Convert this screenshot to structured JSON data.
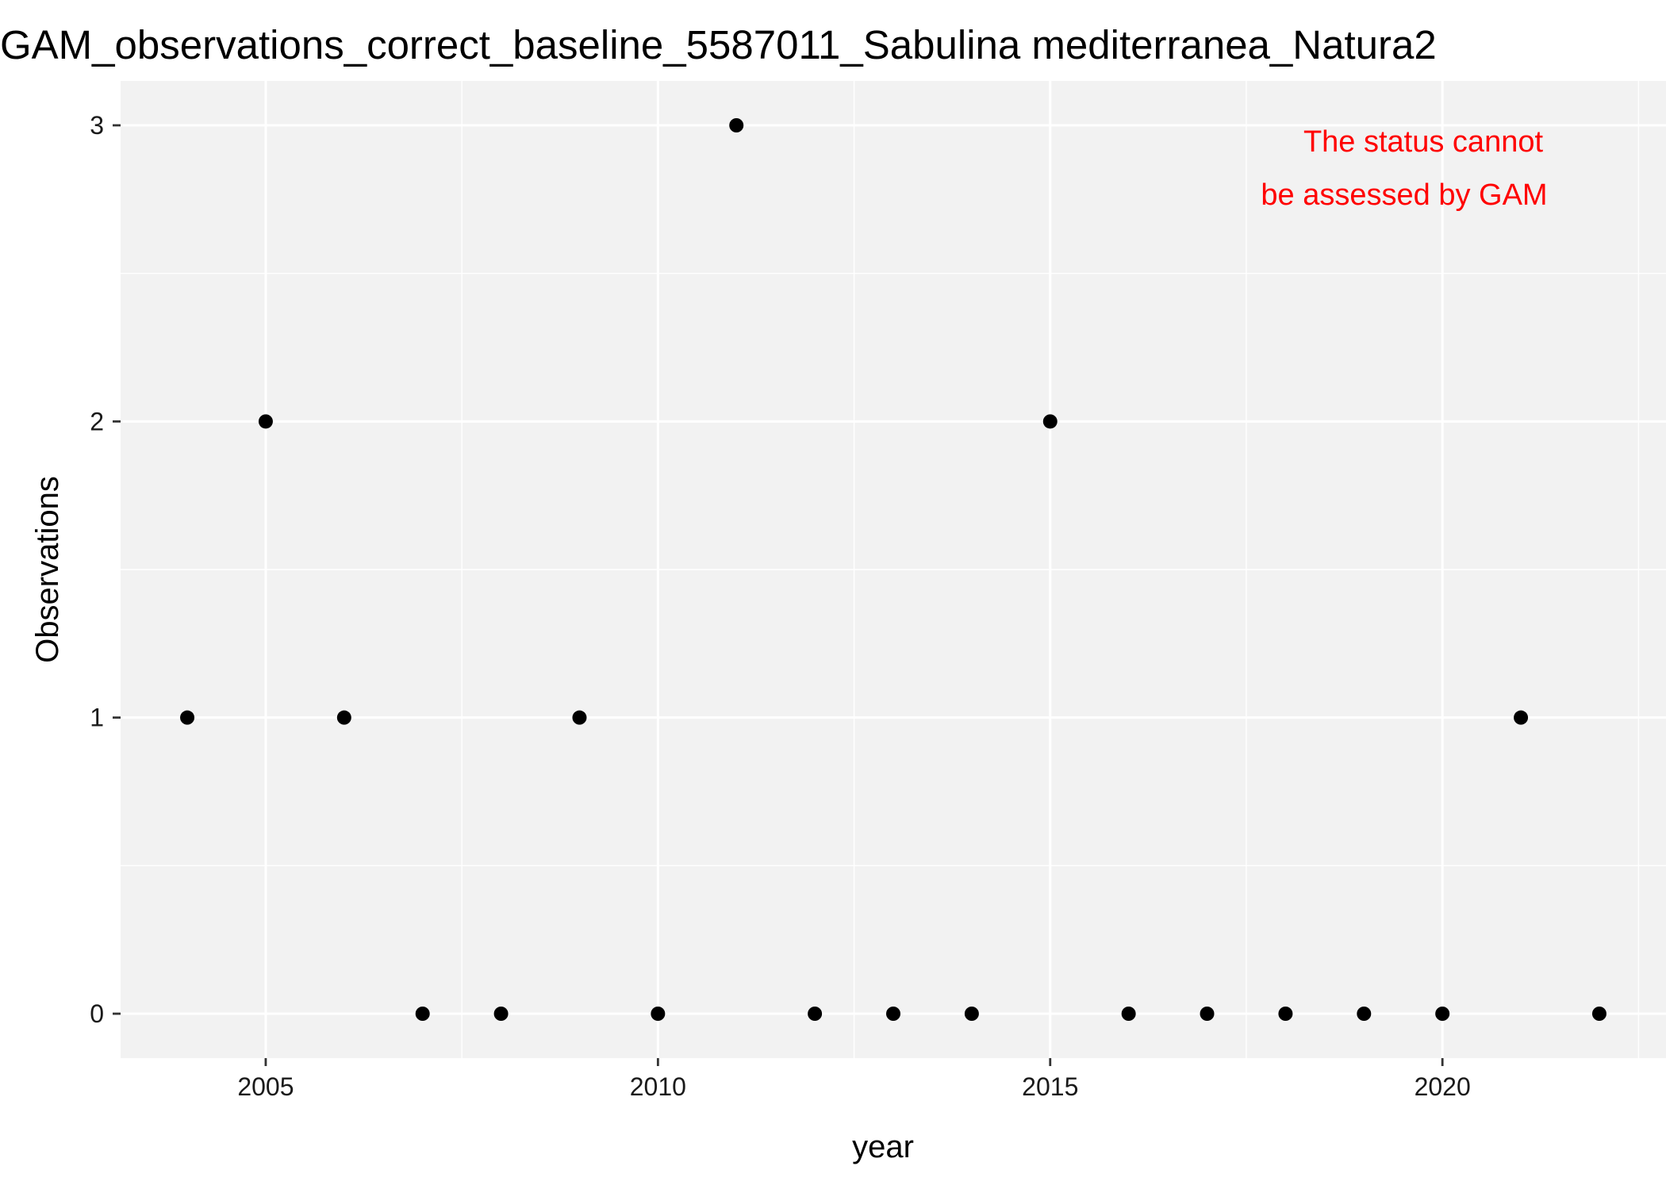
{
  "chart_data": {
    "type": "scatter",
    "title": "GAM_observations_correct_baseline_5587011_Sabulina mediterranea_Natura2",
    "xlabel": "year",
    "ylabel": "Observations",
    "xlim": [
      2003.15,
      2022.85
    ],
    "ylim": [
      -0.15,
      3.15
    ],
    "x_ticks": [
      2005,
      2010,
      2015,
      2020
    ],
    "x_tick_labels": [
      "2005",
      "2010",
      "2015",
      "2020"
    ],
    "y_ticks": [
      0,
      1,
      2,
      3
    ],
    "y_tick_labels": [
      "0",
      "1",
      "2",
      "3"
    ],
    "grid": true,
    "legend": "none",
    "point_color": "#000000",
    "panel_color": "#f2f2f2",
    "points": [
      {
        "x": 2004,
        "y": 1
      },
      {
        "x": 2005,
        "y": 2
      },
      {
        "x": 2006,
        "y": 1
      },
      {
        "x": 2007,
        "y": 0
      },
      {
        "x": 2008,
        "y": 0
      },
      {
        "x": 2009,
        "y": 1
      },
      {
        "x": 2010,
        "y": 0
      },
      {
        "x": 2011,
        "y": 3
      },
      {
        "x": 2012,
        "y": 0
      },
      {
        "x": 2013,
        "y": 0
      },
      {
        "x": 2014,
        "y": 0
      },
      {
        "x": 2015,
        "y": 2
      },
      {
        "x": 2016,
        "y": 0
      },
      {
        "x": 2017,
        "y": 0
      },
      {
        "x": 2018,
        "y": 0
      },
      {
        "x": 2019,
        "y": 0
      },
      {
        "x": 2020,
        "y": 0
      },
      {
        "x": 2021,
        "y": 1
      },
      {
        "x": 2022,
        "y": 0
      }
    ],
    "annotation": {
      "lines": [
        "The status cannot",
        "be assessed by GAM"
      ],
      "color": "#ff0000"
    }
  }
}
